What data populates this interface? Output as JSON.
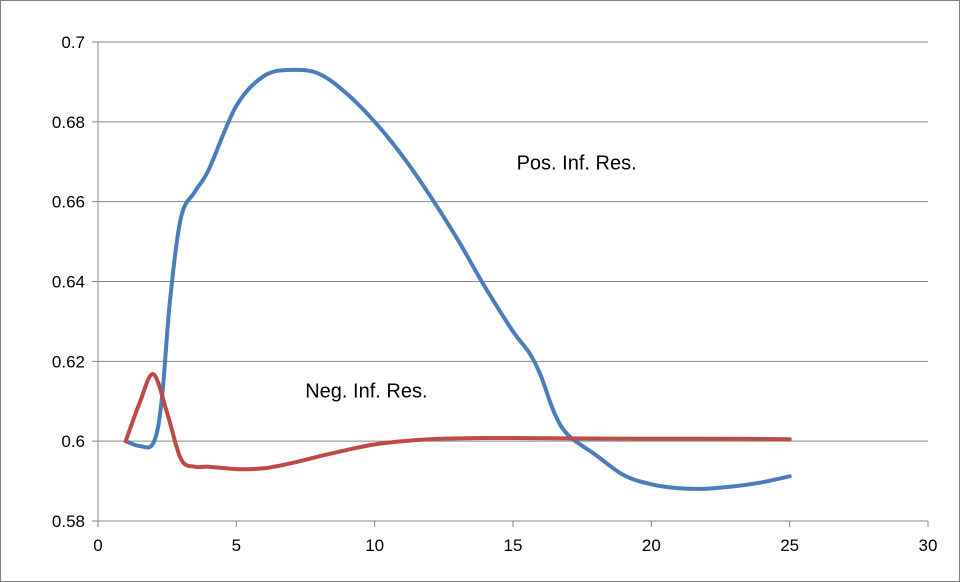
{
  "chart_data": {
    "type": "line",
    "title": "",
    "xlabel": "",
    "ylabel": "",
    "xlim": [
      0,
      30
    ],
    "ylim": [
      0.58,
      0.7
    ],
    "x_ticks": [
      0,
      5,
      10,
      15,
      20,
      25,
      30
    ],
    "x_tick_labels": [
      "0",
      "5",
      "10",
      "15",
      "20",
      "25",
      "30"
    ],
    "y_ticks": [
      0.58,
      0.6,
      0.62,
      0.64,
      0.66,
      0.68,
      0.7
    ],
    "y_tick_labels": [
      "0.58",
      "0.6",
      "0.62",
      "0.64",
      "0.66",
      "0.68",
      "0.7"
    ],
    "grid": "horizontal",
    "legend": "none",
    "series": [
      {
        "color": "#4a7ebb",
        "points": [
          [
            1,
            0.6
          ],
          [
            1.5,
            0.5988
          ],
          [
            2,
            0.5995
          ],
          [
            2.3,
            0.61
          ],
          [
            2.6,
            0.635
          ],
          [
            3,
            0.656
          ],
          [
            3.5,
            0.6625
          ],
          [
            4,
            0.668
          ],
          [
            5,
            0.684
          ],
          [
            6,
            0.6915
          ],
          [
            7,
            0.693
          ],
          [
            8,
            0.692
          ],
          [
            9,
            0.687
          ],
          [
            10,
            0.68
          ],
          [
            11,
            0.6715
          ],
          [
            12,
            0.6615
          ],
          [
            13,
            0.6505
          ],
          [
            14,
            0.6385
          ],
          [
            15,
            0.6275
          ],
          [
            15.6,
            0.622
          ],
          [
            16,
            0.6165
          ],
          [
            16.5,
            0.607
          ],
          [
            17,
            0.6015
          ],
          [
            18,
            0.5965
          ],
          [
            19,
            0.5915
          ],
          [
            20,
            0.5892
          ],
          [
            21,
            0.5882
          ],
          [
            22,
            0.5881
          ],
          [
            23,
            0.5887
          ],
          [
            24,
            0.5897
          ],
          [
            25,
            0.5912
          ]
        ]
      },
      {
        "color": "#be4b48",
        "points": [
          [
            1,
            0.6
          ],
          [
            1.5,
            0.6095
          ],
          [
            2,
            0.6168
          ],
          [
            2.5,
            0.607
          ],
          [
            3,
            0.5955
          ],
          [
            3.5,
            0.5936
          ],
          [
            4,
            0.5936
          ],
          [
            5,
            0.593
          ],
          [
            6,
            0.5932
          ],
          [
            7,
            0.5945
          ],
          [
            8,
            0.5962
          ],
          [
            9,
            0.5978
          ],
          [
            10,
            0.5992
          ],
          [
            11,
            0.6
          ],
          [
            12,
            0.6005
          ],
          [
            13,
            0.6007
          ],
          [
            14,
            0.6008
          ],
          [
            15,
            0.6008
          ],
          [
            17,
            0.6007
          ],
          [
            20,
            0.6006
          ],
          [
            22,
            0.6006
          ],
          [
            25,
            0.6005
          ]
        ]
      }
    ],
    "annotations": [
      {
        "text": "Pos. Inf. Res.",
        "x": 17.3,
        "y": 0.668
      },
      {
        "text": "Neg. Inf. Res.",
        "x": 9.7,
        "y": 0.611
      }
    ]
  }
}
